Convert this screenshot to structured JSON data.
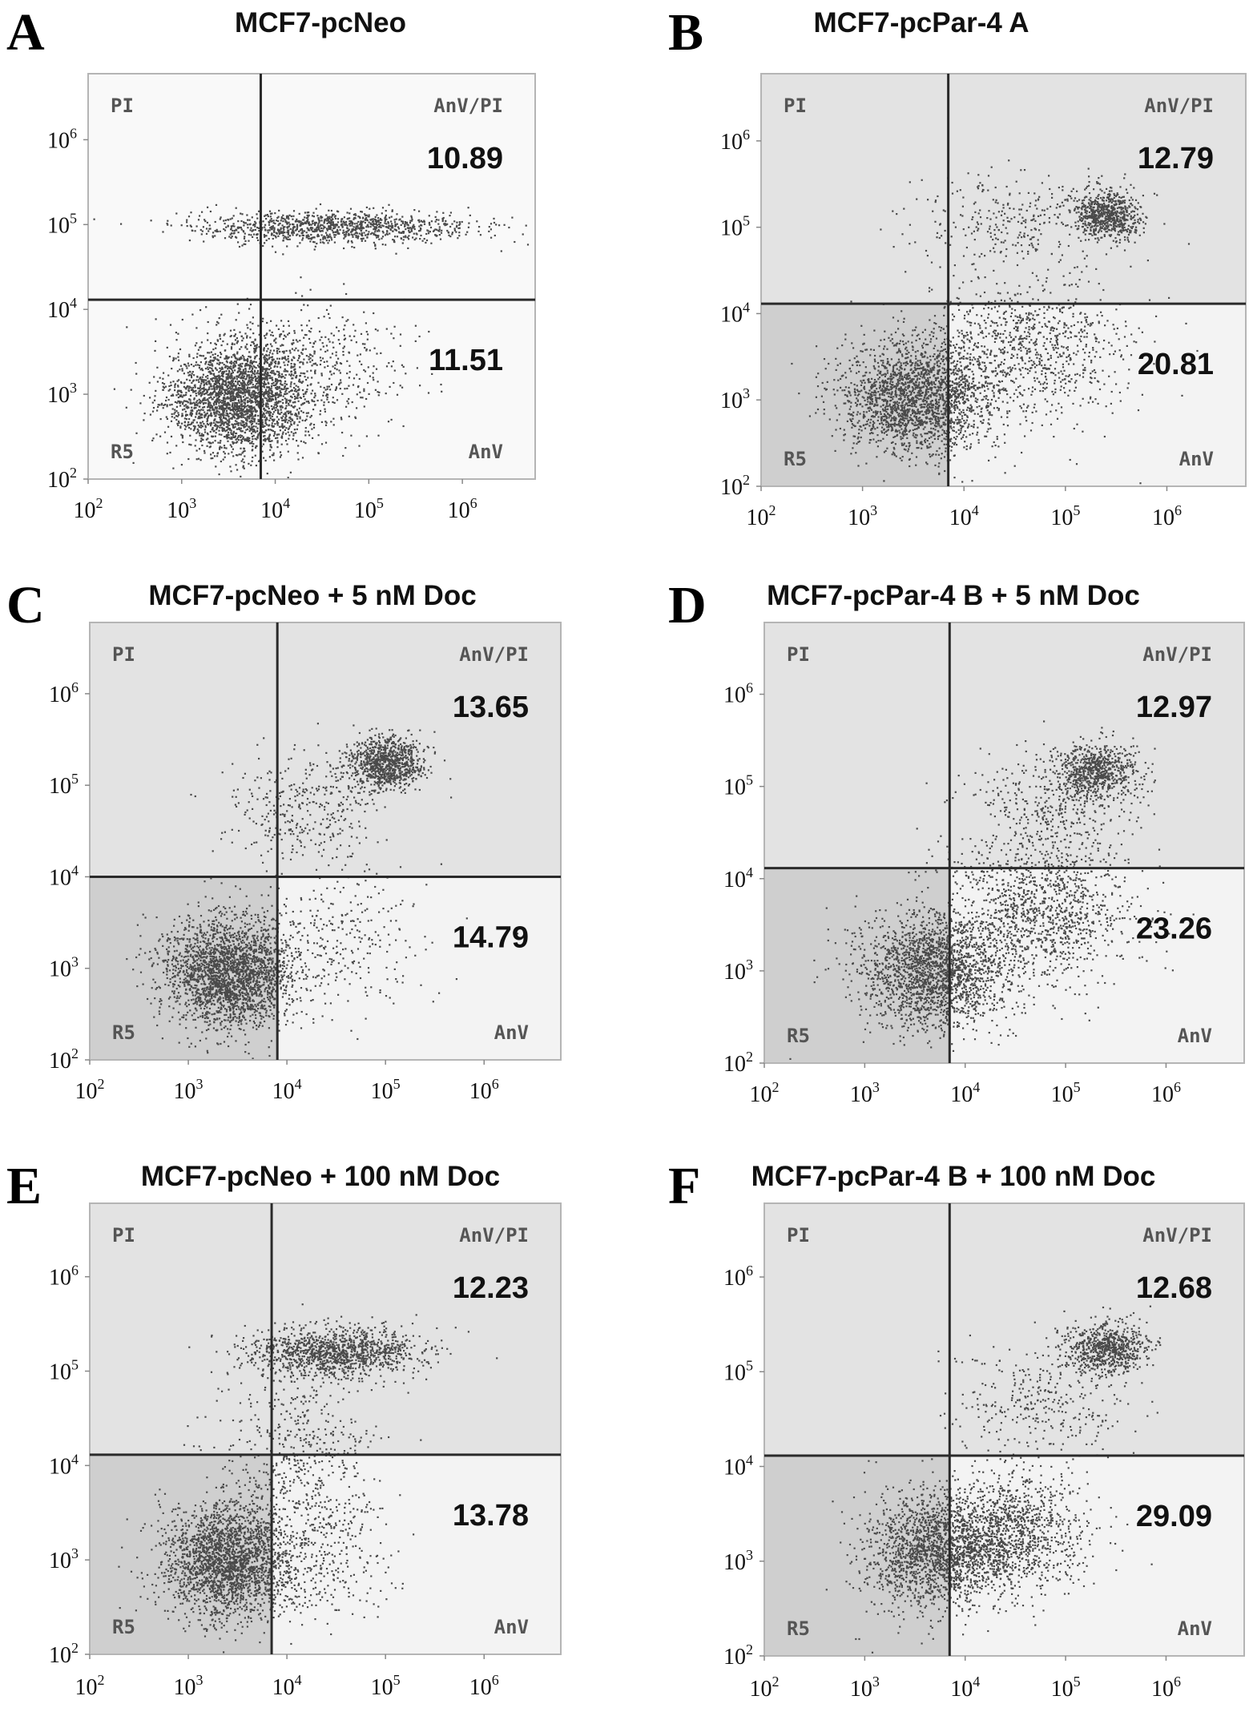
{
  "chart_data": [
    {
      "type": "scatter",
      "panel_letter": "A",
      "title": "MCF7-pcNeo",
      "x_scale": "log",
      "y_scale": "log",
      "xlim": [
        100,
        6000000
      ],
      "ylim": [
        100,
        6000000
      ],
      "x_ticks": [
        "10^2",
        "10^3",
        "10^4",
        "10^5",
        "10^6"
      ],
      "y_ticks": [
        "10^2",
        "10^3",
        "10^4",
        "10^5",
        "10^6"
      ],
      "gate": {
        "x": 7000,
        "y": 13000
      },
      "quadrants": {
        "upper_left": "PI",
        "upper_right": "AnV/PI",
        "lower_left": "R5",
        "lower_right": "AnV"
      },
      "values": {
        "upper_right": 10.89,
        "lower_right": 11.51
      },
      "shaded_quadrants": false,
      "clusters": [
        {
          "x": 4000,
          "y": 900,
          "sx": 0.38,
          "sy": 0.32,
          "n": 2600
        },
        {
          "x": 40000,
          "y": 95000,
          "sx": 0.75,
          "sy": 0.09,
          "n": 1100
        },
        {
          "x": 20000,
          "y": 2500,
          "sx": 0.55,
          "sy": 0.35,
          "n": 500
        }
      ]
    },
    {
      "type": "scatter",
      "panel_letter": "B",
      "title": "MCF7-pcPar-4 A",
      "x_scale": "log",
      "y_scale": "log",
      "xlim": [
        100,
        6000000
      ],
      "ylim": [
        100,
        6000000
      ],
      "x_ticks": [
        "10^2",
        "10^3",
        "10^4",
        "10^5",
        "10^6"
      ],
      "y_ticks": [
        "10^2",
        "10^3",
        "10^4",
        "10^5",
        "10^6"
      ],
      "gate": {
        "x": 7000,
        "y": 13000
      },
      "quadrants": {
        "upper_left": "PI",
        "upper_right": "AnV/PI",
        "lower_left": "R5",
        "lower_right": "AnV"
      },
      "values": {
        "upper_right": 12.79,
        "lower_right": 20.81
      },
      "shaded_quadrants": true,
      "clusters": [
        {
          "x": 3500,
          "y": 1100,
          "sx": 0.38,
          "sy": 0.33,
          "n": 2200
        },
        {
          "x": 250000,
          "y": 140000,
          "sx": 0.16,
          "sy": 0.14,
          "n": 700
        },
        {
          "x": 40000,
          "y": 4000,
          "sx": 0.5,
          "sy": 0.4,
          "n": 900
        },
        {
          "x": 30000,
          "y": 120000,
          "sx": 0.5,
          "sy": 0.25,
          "n": 300
        }
      ]
    },
    {
      "type": "scatter",
      "panel_letter": "C",
      "title": "MCF7-pcNeo + 5 nM Doc",
      "x_scale": "log",
      "y_scale": "log",
      "xlim": [
        100,
        6000000
      ],
      "ylim": [
        100,
        6000000
      ],
      "x_ticks": [
        "10^2",
        "10^3",
        "10^4",
        "10^5",
        "10^6"
      ],
      "y_ticks": [
        "10^2",
        "10^3",
        "10^4",
        "10^5",
        "10^6"
      ],
      "gate": {
        "x": 8000,
        "y": 10000
      },
      "quadrants": {
        "upper_left": "PI",
        "upper_right": "AnV/PI",
        "lower_left": "R5",
        "lower_right": "AnV"
      },
      "values": {
        "upper_right": 13.65,
        "lower_right": 14.79
      },
      "shaded_quadrants": true,
      "clusters": [
        {
          "x": 2500,
          "y": 900,
          "sx": 0.33,
          "sy": 0.3,
          "n": 2400
        },
        {
          "x": 100000,
          "y": 180000,
          "sx": 0.2,
          "sy": 0.14,
          "n": 900
        },
        {
          "x": 15000,
          "y": 60000,
          "sx": 0.4,
          "sy": 0.3,
          "n": 350
        },
        {
          "x": 30000,
          "y": 2000,
          "sx": 0.45,
          "sy": 0.4,
          "n": 300
        }
      ]
    },
    {
      "type": "scatter",
      "panel_letter": "D",
      "title": "MCF7-pcPar-4 B + 5 nM Doc",
      "x_scale": "log",
      "y_scale": "log",
      "xlim": [
        100,
        6000000
      ],
      "ylim": [
        100,
        6000000
      ],
      "x_ticks": [
        "10^2",
        "10^3",
        "10^4",
        "10^5",
        "10^6"
      ],
      "y_ticks": [
        "10^2",
        "10^3",
        "10^4",
        "10^5",
        "10^6"
      ],
      "gate": {
        "x": 7000,
        "y": 13000
      },
      "quadrants": {
        "upper_left": "PI",
        "upper_right": "AnV/PI",
        "lower_left": "R5",
        "lower_right": "AnV"
      },
      "values": {
        "upper_right": 12.97,
        "lower_right": 23.26
      },
      "shaded_quadrants": true,
      "clusters": [
        {
          "x": 5000,
          "y": 1000,
          "sx": 0.38,
          "sy": 0.32,
          "n": 2100
        },
        {
          "x": 200000,
          "y": 150000,
          "sx": 0.2,
          "sy": 0.15,
          "n": 700
        },
        {
          "x": 60000,
          "y": 5000,
          "sx": 0.45,
          "sy": 0.4,
          "n": 1200
        },
        {
          "x": 80000,
          "y": 60000,
          "sx": 0.4,
          "sy": 0.3,
          "n": 350
        }
      ]
    },
    {
      "type": "scatter",
      "panel_letter": "E",
      "title": "MCF7-pcNeo + 100 nM Doc",
      "x_scale": "log",
      "y_scale": "log",
      "xlim": [
        100,
        6000000
      ],
      "ylim": [
        100,
        6000000
      ],
      "x_ticks": [
        "10^2",
        "10^3",
        "10^4",
        "10^5",
        "10^6"
      ],
      "y_ticks": [
        "10^2",
        "10^3",
        "10^4",
        "10^5",
        "10^6"
      ],
      "gate": {
        "x": 7000,
        "y": 13000
      },
      "quadrants": {
        "upper_left": "PI",
        "upper_right": "AnV/PI",
        "lower_left": "R5",
        "lower_right": "AnV"
      },
      "values": {
        "upper_right": 12.23,
        "lower_right": 13.78
      },
      "shaded_quadrants": true,
      "clusters": [
        {
          "x": 2500,
          "y": 1000,
          "sx": 0.33,
          "sy": 0.3,
          "n": 2300
        },
        {
          "x": 30000,
          "y": 160000,
          "sx": 0.45,
          "sy": 0.13,
          "n": 1200
        },
        {
          "x": 15000,
          "y": 15000,
          "sx": 0.4,
          "sy": 0.5,
          "n": 500
        },
        {
          "x": 25000,
          "y": 1500,
          "sx": 0.35,
          "sy": 0.4,
          "n": 300
        }
      ]
    },
    {
      "type": "scatter",
      "panel_letter": "F",
      "title": "MCF7-pcPar-4 B + 100 nM Doc",
      "x_scale": "log",
      "y_scale": "log",
      "xlim": [
        100,
        6000000
      ],
      "ylim": [
        100,
        6000000
      ],
      "x_ticks": [
        "10^2",
        "10^3",
        "10^4",
        "10^5",
        "10^6"
      ],
      "y_ticks": [
        "10^2",
        "10^3",
        "10^4",
        "10^5",
        "10^6"
      ],
      "gate": {
        "x": 7000,
        "y": 13000
      },
      "quadrants": {
        "upper_left": "PI",
        "upper_right": "AnV/PI",
        "lower_left": "R5",
        "lower_right": "AnV"
      },
      "values": {
        "upper_right": 12.68,
        "lower_right": 29.09
      },
      "shaded_quadrants": true,
      "clusters": [
        {
          "x": 5000,
          "y": 1300,
          "sx": 0.35,
          "sy": 0.3,
          "n": 1800
        },
        {
          "x": 250000,
          "y": 180000,
          "sx": 0.2,
          "sy": 0.13,
          "n": 700
        },
        {
          "x": 30000,
          "y": 2000,
          "sx": 0.35,
          "sy": 0.3,
          "n": 1100
        },
        {
          "x": 60000,
          "y": 50000,
          "sx": 0.45,
          "sy": 0.35,
          "n": 350
        }
      ]
    }
  ],
  "colors": {
    "dot": "#4a4a4a",
    "quad_dark": "#cfcfcf",
    "quad_mid": "#e3e3e3",
    "quad_light": "#f3f3f3",
    "plain_bg": "#f9f9f9",
    "gate_line": "#2a2a2a",
    "quad_label": "#555555"
  }
}
